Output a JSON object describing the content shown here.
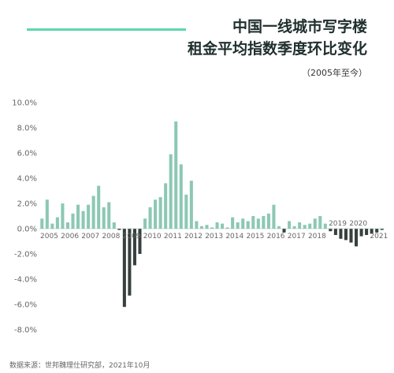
{
  "header": {
    "title_line1": "中国一线城市写字楼",
    "title_line2": "租金平均指数季度环比变化",
    "subtitle": "（2005年至今）"
  },
  "footer": {
    "source": "数据来源：世邦魏理仕研究部，2021年10月"
  },
  "colors": {
    "positive": "#8cc8b4",
    "negative": "#37403e",
    "accent": "#5fd6b0"
  },
  "chart_data": {
    "type": "bar",
    "title": "中国一线城市写字楼租金平均指数季度环比变化",
    "subtitle": "（2005年至今）",
    "xlabel": "",
    "ylabel": "",
    "ylim": [
      -9,
      10
    ],
    "y_ticks": [
      "10.0%",
      "8.0%",
      "6.0%",
      "4.0%",
      "2.0%",
      "0.0%",
      "-2.0%",
      "-4.0%",
      "-6.0%",
      "-8.0%"
    ],
    "y_tick_values": [
      10,
      8,
      6,
      4,
      2,
      0,
      -2,
      -4,
      -6,
      -8
    ],
    "year_labels": [
      {
        "label": "2005",
        "start": 0
      },
      {
        "label": "2006",
        "start": 4
      },
      {
        "label": "2007",
        "start": 8
      },
      {
        "label": "2008",
        "start": 12
      },
      {
        "label": "2009",
        "start": 16
      },
      {
        "label": "2010",
        "start": 20
      },
      {
        "label": "2011",
        "start": 24
      },
      {
        "label": "2012",
        "start": 28
      },
      {
        "label": "2013",
        "start": 32
      },
      {
        "label": "2014",
        "start": 36
      },
      {
        "label": "2015",
        "start": 40
      },
      {
        "label": "2016",
        "start": 44
      },
      {
        "label": "2017",
        "start": 48
      },
      {
        "label": "2018",
        "start": 52
      },
      {
        "label": "2019",
        "start": 56
      },
      {
        "label": "2020",
        "start": 60
      },
      {
        "label": "2021",
        "start": 64
      }
    ],
    "values": [
      0.8,
      2.3,
      0.4,
      0.9,
      2.0,
      0.5,
      1.2,
      1.9,
      1.4,
      1.9,
      2.6,
      3.4,
      1.7,
      2.1,
      0.5,
      -0.1,
      -6.2,
      -5.3,
      -2.9,
      -2.0,
      0.8,
      1.7,
      2.3,
      2.5,
      3.6,
      5.9,
      8.5,
      5.1,
      2.7,
      3.8,
      0.6,
      0.2,
      0.3,
      0.1,
      0.5,
      0.4,
      0.1,
      0.9,
      0.5,
      0.8,
      0.6,
      1.0,
      0.8,
      1.0,
      1.2,
      1.9,
      0.2,
      -0.3,
      0.6,
      0.2,
      0.5,
      0.3,
      0.4,
      0.8,
      1.0,
      0.4,
      -0.2,
      -0.5,
      -0.8,
      -0.9,
      -1.1,
      -1.4,
      -0.6,
      -0.5,
      -0.4,
      -0.3,
      -0.1
    ]
  }
}
